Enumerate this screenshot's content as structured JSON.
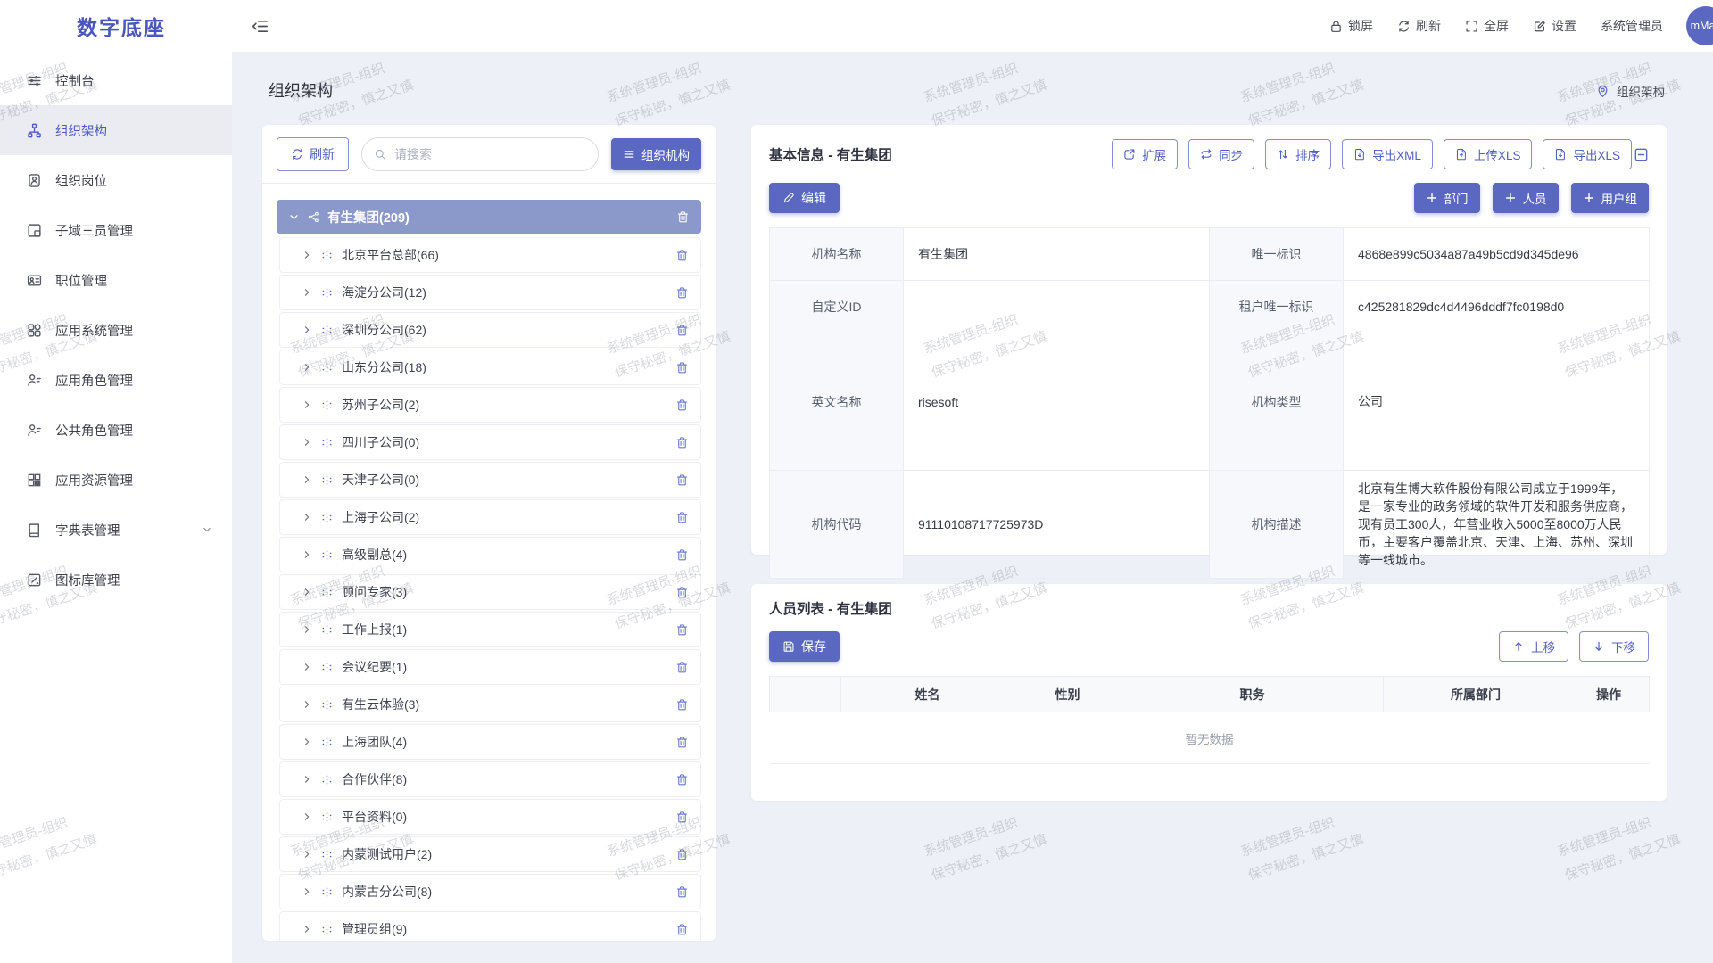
{
  "app": {
    "logo": "数字底座"
  },
  "header": {
    "actions": [
      {
        "icon": "lock",
        "label": "锁屏"
      },
      {
        "icon": "refresh",
        "label": "刷新"
      },
      {
        "icon": "fullscreen",
        "label": "全屏"
      },
      {
        "icon": "settings",
        "label": "设置"
      }
    ],
    "username": "系统管理员",
    "avatar_text": "mMan"
  },
  "sidebar": {
    "items": [
      {
        "icon": "sliders",
        "label": "控制台"
      },
      {
        "icon": "orgtree",
        "label": "组织架构",
        "active": true
      },
      {
        "icon": "badge",
        "label": "组织岗位"
      },
      {
        "icon": "frame",
        "label": "子域三员管理"
      },
      {
        "icon": "idcard",
        "label": "职位管理"
      },
      {
        "icon": "appgrid",
        "label": "应用系统管理"
      },
      {
        "icon": "userrole",
        "label": "应用角色管理"
      },
      {
        "icon": "userrole",
        "label": "公共角色管理"
      },
      {
        "icon": "blocks",
        "label": "应用资源管理"
      },
      {
        "icon": "book",
        "label": "字典表管理",
        "expandable": true
      },
      {
        "icon": "iconlib",
        "label": "图标库管理"
      }
    ]
  },
  "page": {
    "title": "组织架构",
    "breadcrumb": "组织架构"
  },
  "tree_panel": {
    "refresh_label": "刷新",
    "search_placeholder": "请搜索",
    "org_button_label": "组织机构",
    "root": {
      "label": "有生集团(209)"
    },
    "nodes": [
      "北京平台总部(66)",
      "海淀分公司(12)",
      "深圳分公司(62)",
      "山东分公司(18)",
      "苏州子公司(2)",
      "四川子公司(0)",
      "天津子公司(0)",
      "上海子公司(2)",
      "高级副总(4)",
      "顾问专家(3)",
      "工作上报(1)",
      "会议纪要(1)",
      "有生云体验(3)",
      "上海团队(4)",
      "合作伙伴(8)",
      "平台资料(0)",
      "内蒙测试用户(2)",
      "内蒙古分公司(8)",
      "管理员组(9)"
    ]
  },
  "info_panel": {
    "title": "基本信息 - 有生集团",
    "toolbar": [
      {
        "icon": "external",
        "label": "扩展"
      },
      {
        "icon": "sync",
        "label": "同步"
      },
      {
        "icon": "sort",
        "label": "排序"
      },
      {
        "icon": "filedown",
        "label": "导出XML"
      },
      {
        "icon": "fileup",
        "label": "上传XLS"
      },
      {
        "icon": "filedown",
        "label": "导出XLS"
      }
    ],
    "edit_label": "编辑",
    "add_buttons": [
      {
        "icon": "plus",
        "label": "部门"
      },
      {
        "icon": "plus",
        "label": "人员"
      },
      {
        "icon": "plus",
        "label": "用户组"
      }
    ],
    "rows": [
      {
        "l1": "机构名称",
        "v1": "有生集团",
        "l2": "唯一标识",
        "v2": "4868e899c5034a87a49b5cd9d345de96"
      },
      {
        "l1": "自定义ID",
        "v1": "",
        "l2": "租户唯一标识",
        "v2": "c425281829dc4d4496dddf7fc0198d0"
      },
      {
        "l1": "英文名称",
        "v1": "risesoft",
        "l2": "机构类型",
        "v2": "公司"
      },
      {
        "l1": "机构代码",
        "v1": "91110108717725973D",
        "l2": "机构描述",
        "v2": "北京有生博大软件股份有限公司成立于1999年，是一家专业的政务领域的软件开发和服务供应商，现有员工300人，年营业收入5000至8000万人民币，主要客户覆盖北京、天津、上海、苏州、深圳等一线城市。"
      }
    ]
  },
  "person_panel": {
    "title": "人员列表 - 有生集团",
    "save_label": "保存",
    "move_buttons": [
      {
        "icon": "arrowup",
        "label": "上移"
      },
      {
        "icon": "arrowdown",
        "label": "下移"
      }
    ],
    "columns": [
      "",
      "姓名",
      "性别",
      "职务",
      "所属部门",
      "操作"
    ],
    "empty_text": "暂无数据"
  },
  "watermark": {
    "line1": "系统管理员-组织",
    "line2": "保守秘密，慎之又慎"
  },
  "colors": {
    "primary": "#5a68c1",
    "selected_row": "#8b98ca",
    "page_bg": "#edf0f6"
  }
}
